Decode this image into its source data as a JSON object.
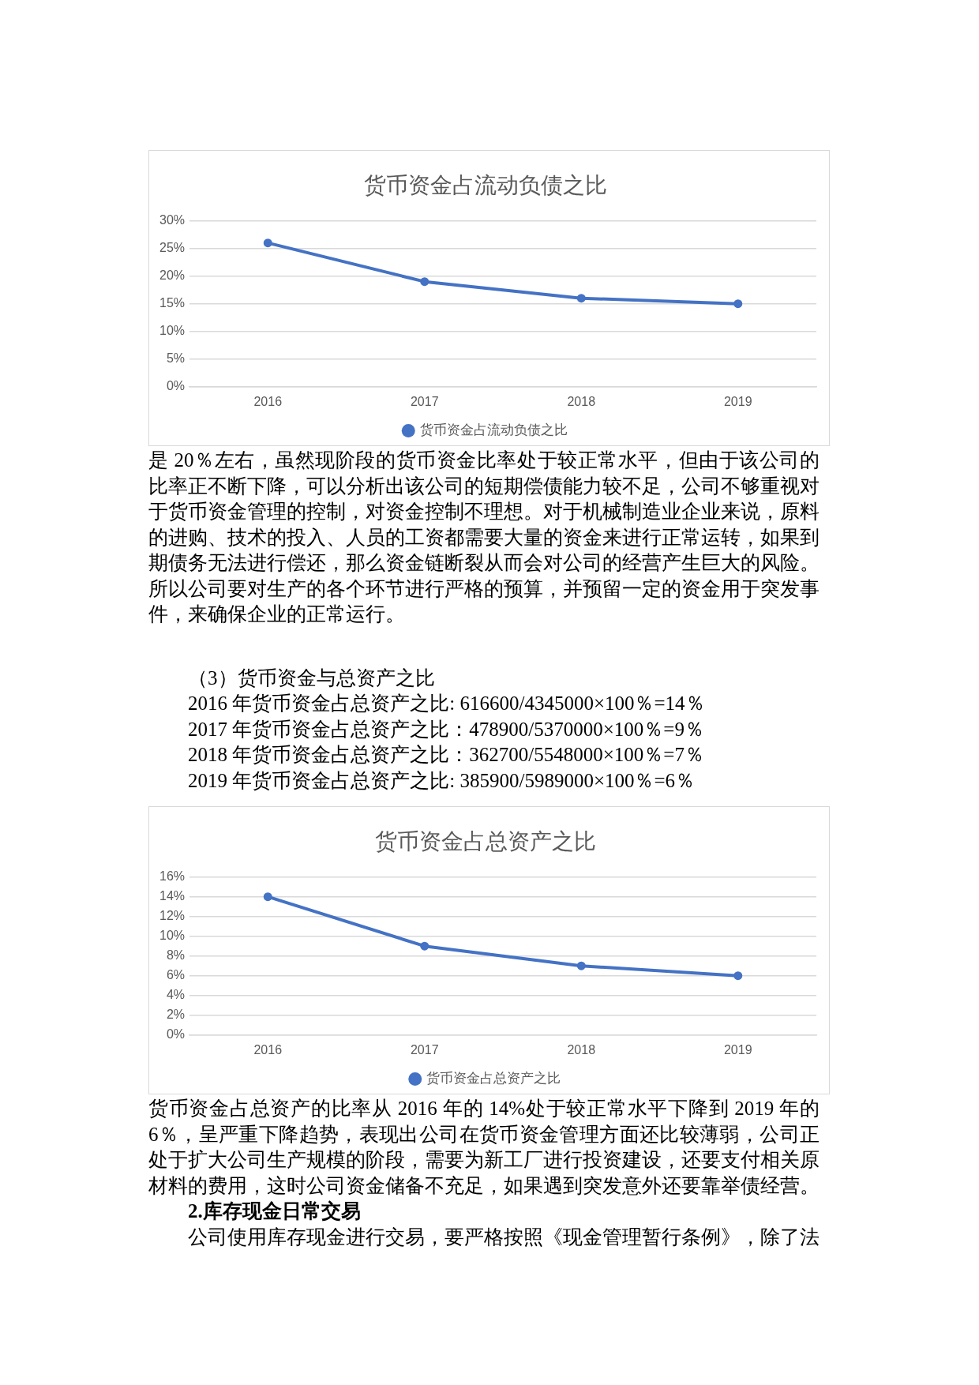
{
  "chart_data": [
    {
      "type": "line",
      "title": "货币资金占流动负债之比",
      "categories": [
        "2016",
        "2017",
        "2018",
        "2019"
      ],
      "series": [
        {
          "name": "货币资金占流动负债之比",
          "color": "#4472c4",
          "values": [
            26,
            19,
            16,
            15
          ]
        }
      ],
      "ylim": [
        0,
        30
      ],
      "yticks": [
        {
          "value": 0,
          "label": "0%"
        },
        {
          "value": 5,
          "label": "5%"
        },
        {
          "value": 10,
          "label": "10%"
        },
        {
          "value": 15,
          "label": "15%"
        },
        {
          "value": 20,
          "label": "20%"
        },
        {
          "value": 25,
          "label": "25%"
        },
        {
          "value": 30,
          "label": "30%"
        }
      ],
      "grid": "y",
      "legend": "bottom",
      "marker": "circle"
    },
    {
      "type": "other",
      "annotations": [
        "是 20％左右，虽然现阶段的货币资金比率处于较正常水平，但由于该公司的比率正不断下降，可以分析出该公司的短期偿债能力较不足，公司不够重视对于货币资金管理的控制，对资金控制不理想。对于机械制造业企业来说，原料的进购、技术的投入、人员的工资都需要大量的资金来进行正常运转，如果到期债务无法进行偿还，那么资金链断裂从而会对公司的经营产生巨大的风险。所以公司要对生产的各个环节进行严格的预算，并预留一定的资金用于突发事件，来确保企业的正常运行。"
      ]
    },
    {
      "type": "other",
      "annotations": [
        "（3）货币资金与总资产之比",
        "2016 年货币资金占总资产之比: 616600/4345000×100％=14％",
        "2017 年货币资金占总资产之比：478900/5370000×100％=9％",
        "2018 年货币资金占总资产之比：362700/5548000×100％=7％",
        "2019 年货币资金占总资产之比: 385900/5989000×100％=6％"
      ]
    },
    {
      "type": "line",
      "title": "货币资金占总资产之比",
      "categories": [
        "2016",
        "2017",
        "2018",
        "2019"
      ],
      "series": [
        {
          "name": "货币资金占总资产之比",
          "color": "#4472c4",
          "values": [
            14,
            9,
            7,
            6
          ]
        }
      ],
      "ylim": [
        0,
        16
      ],
      "yticks": [
        {
          "value": 0,
          "label": "0%"
        },
        {
          "value": 2,
          "label": "2%"
        },
        {
          "value": 4,
          "label": "4%"
        },
        {
          "value": 6,
          "label": "6%"
        },
        {
          "value": 8,
          "label": "8%"
        },
        {
          "value": 10,
          "label": "10%"
        },
        {
          "value": 12,
          "label": "12%"
        },
        {
          "value": 14,
          "label": "14%"
        },
        {
          "value": 16,
          "label": "16%"
        }
      ],
      "grid": "y",
      "legend": "bottom",
      "marker": "circle"
    },
    {
      "type": "other",
      "annotations": [
        "货币资金占总资产的比率从 2016 年的 14%处于较正常水平下降到 2019 年的 6％，呈严重下降趋势，表现出公司在货币资金管理方面还比较薄弱，公司正处于扩大公司生产规模的阶段，需要为新工厂进行投资建设，还要支付相关原材料的费用，这时公司资金储备不充足，如果遇到突发意外还要靠举债经营。"
      ]
    },
    {
      "type": "other",
      "title": "2.库存现金日常交易",
      "annotations": [
        "公司使用库存现金进行交易，要严格按照《现金管理暂行条例》，除了法"
      ]
    }
  ]
}
